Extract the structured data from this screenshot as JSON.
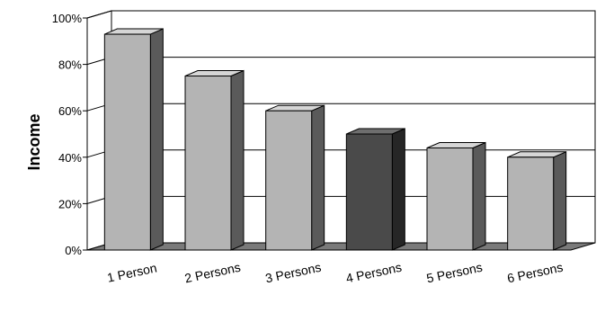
{
  "chart_data": {
    "type": "bar",
    "style": "3d-column",
    "categories": [
      "1 Person",
      "2 Persons",
      "3 Persons",
      "4 Persons",
      "5 Persons",
      "6 Persons"
    ],
    "values": [
      93,
      75,
      60,
      50,
      44,
      40
    ],
    "unit": "%",
    "ylabel": "Income",
    "xlabel": "",
    "title": "",
    "ylim": [
      0,
      100
    ],
    "yticks": [
      "0%",
      "20%",
      "40%",
      "60%",
      "80%",
      "100%"
    ],
    "grid": true,
    "legend": "none",
    "highlight_index": 3,
    "colors": {
      "bar_front": "#b4b4b4",
      "bar_side": "#5a5a5a",
      "bar_top": "#d6d6d6",
      "highlight_front": "#4a4a4a",
      "highlight_side": "#262626",
      "highlight_top": "#6e6e6e",
      "floor": "#7a7a7a",
      "wall": "#ffffff",
      "grid": "#000000"
    }
  }
}
